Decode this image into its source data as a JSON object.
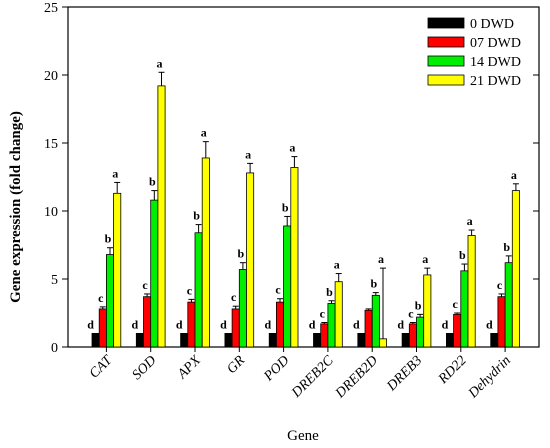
{
  "chart_data": {
    "type": "bar",
    "xlabel": "Gene",
    "ylabel": "Gene expression (fold change)",
    "ylim": [
      0,
      25
    ],
    "yticks": [
      0,
      5,
      10,
      15,
      20,
      25
    ],
    "legend_position": "top-right",
    "categories": [
      "CAT",
      "SOD",
      "APX",
      "GR",
      "POD",
      "DREB2C",
      "DREB2D",
      "DREB3",
      "RD22",
      "Dehydrin"
    ],
    "series": [
      {
        "name": "0 DWD",
        "color": "#000000",
        "values": [
          1,
          1,
          1,
          1,
          1,
          1,
          1,
          1,
          1,
          1
        ],
        "errors": [
          0,
          0,
          0,
          0,
          0,
          0,
          0,
          0,
          0,
          0
        ],
        "letters": [
          "d",
          "d",
          "d",
          "d",
          "d",
          "d",
          "d",
          "d",
          "d",
          "d"
        ]
      },
      {
        "name": "07 DWD",
        "color": "#ff0000",
        "values": [
          2.8,
          3.7,
          3.3,
          2.8,
          3.3,
          1.7,
          2.7,
          1.7,
          2.4,
          3.7
        ],
        "errors": [
          0.15,
          0.2,
          0.2,
          0.2,
          0.25,
          0.1,
          0.1,
          0.1,
          0.1,
          0.2
        ],
        "letters": [
          "c",
          "c",
          "c",
          "c",
          "c",
          "c",
          "",
          "c",
          "c",
          "c"
        ]
      },
      {
        "name": "14 DWD",
        "color": "#00ee00",
        "values": [
          6.8,
          10.8,
          8.4,
          5.7,
          8.9,
          3.2,
          3.8,
          2.2,
          5.6,
          6.2
        ],
        "errors": [
          0.5,
          0.7,
          0.6,
          0.5,
          0.7,
          0.2,
          0.2,
          0.2,
          0.5,
          0.5
        ],
        "letters": [
          "b",
          "b",
          "b",
          "b",
          "b",
          "b",
          "b",
          "b",
          "b",
          "b"
        ]
      },
      {
        "name": "21 DWD",
        "color": "#ffff00",
        "values": [
          11.3,
          19.2,
          13.9,
          12.8,
          13.2,
          4.8,
          0.6,
          5.3,
          8.2,
          11.5
        ],
        "errors": [
          0.8,
          1.0,
          1.2,
          0.7,
          0.8,
          0.6,
          5.2,
          0.5,
          0.4,
          0.5
        ],
        "letters": [
          "a",
          "a",
          "a",
          "a",
          "a",
          "a",
          "a",
          "a",
          "a",
          "a"
        ]
      }
    ]
  }
}
